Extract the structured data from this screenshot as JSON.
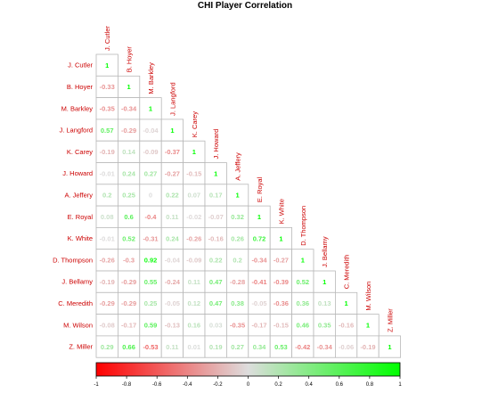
{
  "chart_data": {
    "type": "heatmap",
    "title": "CHI Player Correlation",
    "players": [
      "J. Cutler",
      "B. Hoyer",
      "M. Barkley",
      "J. Langford",
      "K. Carey",
      "J. Howard",
      "A. Jeffery",
      "E. Royal",
      "K. White",
      "D. Thompson",
      "J. Bellamy",
      "C. Meredith",
      "M. Wilson",
      "Z. Miller"
    ],
    "matrix": [
      [
        1
      ],
      [
        -0.33,
        1
      ],
      [
        -0.35,
        -0.34,
        1
      ],
      [
        0.57,
        -0.29,
        -0.04,
        1
      ],
      [
        -0.19,
        0.14,
        -0.09,
        -0.37,
        1
      ],
      [
        -0.01,
        0.24,
        0.27,
        -0.27,
        -0.15,
        1
      ],
      [
        0.2,
        0.25,
        0,
        0.22,
        0.07,
        0.17,
        1
      ],
      [
        0.08,
        0.6,
        -0.4,
        0.11,
        -0.02,
        -0.07,
        0.32,
        1
      ],
      [
        -0.01,
        0.52,
        -0.31,
        0.24,
        -0.26,
        -0.16,
        0.26,
        0.72,
        1
      ],
      [
        -0.26,
        -0.3,
        0.92,
        -0.04,
        -0.09,
        0.22,
        0.2,
        -0.34,
        -0.27,
        1
      ],
      [
        -0.19,
        -0.29,
        0.55,
        -0.24,
        0.11,
        0.47,
        -0.28,
        -0.41,
        -0.39,
        0.52,
        1
      ],
      [
        -0.29,
        -0.29,
        0.25,
        -0.05,
        0.12,
        0.47,
        0.38,
        -0.05,
        -0.36,
        0.36,
        0.13,
        1
      ],
      [
        -0.08,
        -0.17,
        0.59,
        -0.13,
        0.16,
        0.03,
        -0.35,
        -0.17,
        -0.15,
        0.46,
        0.35,
        -0.16,
        1
      ],
      [
        0.29,
        0.66,
        -0.53,
        0.11,
        0.01,
        0.19,
        0.27,
        0.34,
        0.53,
        -0.42,
        -0.34,
        -0.06,
        -0.19,
        1
      ]
    ],
    "color_scale": {
      "range": [
        -1,
        1
      ],
      "low": "#ff0000",
      "mid": "#dddddd",
      "high": "#00ff00",
      "label_color": "#cc0000"
    },
    "colorbar_ticks": [
      "-1",
      "-0.8",
      "-0.6",
      "-0.4",
      "-0.2",
      "0",
      "0.2",
      "0.4",
      "0.6",
      "0.8",
      "1"
    ]
  }
}
